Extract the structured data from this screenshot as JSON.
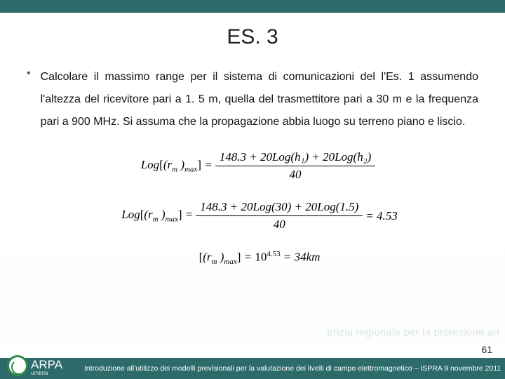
{
  "title": "ES. 3",
  "body": "Calcolare il massimo range per il sistema di comunicazioni del l'Es. 1 assumendo l'altezza del ricevitore pari a 1. 5 m, quella del trasmettitore pari a 30 m e la frequenza pari a 900 MHz. Si assuma che la propagazione abbia luogo su terreno piano e liscio.",
  "bullet_glyph": "•",
  "formula": {
    "f1_num": "148.3 + 20Log(h₁) + 20Log(h₂)",
    "f1_den": "40",
    "f2_num": "148.3 + 20Log(30) + 20Log(1.5)",
    "f2_den": "40",
    "f2_rhs": "= 4.53",
    "f3": "[(rₘ )max] = 10",
    "f3_exp": "4.53",
    "f3_rhs": " = 34km"
  },
  "watermark": "enzia regionale per la protezione an",
  "page_number": "61",
  "footer": "Introduzione all'utilizzo dei modelli previsionali per la valutazione dei livelli di campo elettromagnetico – ISPRA 9 novembre 2011",
  "logo": {
    "text": "ARPA",
    "sub": "umbria"
  },
  "colors": {
    "bar": "#2d6b6b",
    "text": "#111111",
    "accent_green": "#2d8a4a"
  }
}
